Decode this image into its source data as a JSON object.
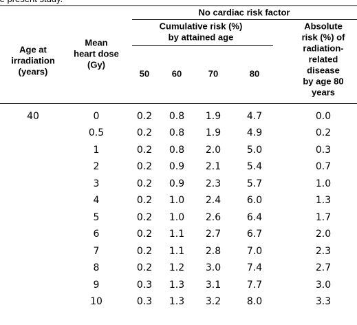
{
  "table": {
    "caption_fragment": "the present study.",
    "group_header": "No cardiac risk factor",
    "age_header": [
      "Age at",
      "irradiation",
      "(years)"
    ],
    "dose_header": [
      "Mean",
      "heart dose",
      "(Gy)"
    ],
    "cumulative_header": [
      "Cumulative risk (%)",
      "by attained age"
    ],
    "attained_ages": [
      "50",
      "60",
      "70",
      "80"
    ],
    "absolute_header": [
      "Absolute",
      "risk (%) of",
      "radiation-",
      "related",
      "disease",
      "by age 80",
      "years"
    ],
    "age": "40",
    "rows": [
      [
        "0",
        "0.2",
        "0.8",
        "1.9",
        "4.7",
        "0.0"
      ],
      [
        "0.5",
        "0.2",
        "0.8",
        "1.9",
        "4.9",
        "0.2"
      ],
      [
        "1",
        "0.2",
        "0.8",
        "2.0",
        "5.0",
        "0.3"
      ],
      [
        "2",
        "0.2",
        "0.9",
        "2.1",
        "5.4",
        "0.7"
      ],
      [
        "3",
        "0.2",
        "0.9",
        "2.3",
        "5.7",
        "1.0"
      ],
      [
        "4",
        "0.2",
        "1.0",
        "2.4",
        "6.0",
        "1.3"
      ],
      [
        "5",
        "0.2",
        "1.0",
        "2.6",
        "6.4",
        "1.7"
      ],
      [
        "6",
        "0.2",
        "1.1",
        "2.7",
        "6.7",
        "2.0"
      ],
      [
        "7",
        "0.2",
        "1.1",
        "2.8",
        "7.0",
        "2.3"
      ],
      [
        "8",
        "0.2",
        "1.2",
        "3.0",
        "7.4",
        "2.7"
      ],
      [
        "9",
        "0.3",
        "1.3",
        "3.1",
        "7.7",
        "3.0"
      ],
      [
        "10",
        "0.3",
        "1.3",
        "3.2",
        "8.0",
        "3.3"
      ]
    ]
  }
}
